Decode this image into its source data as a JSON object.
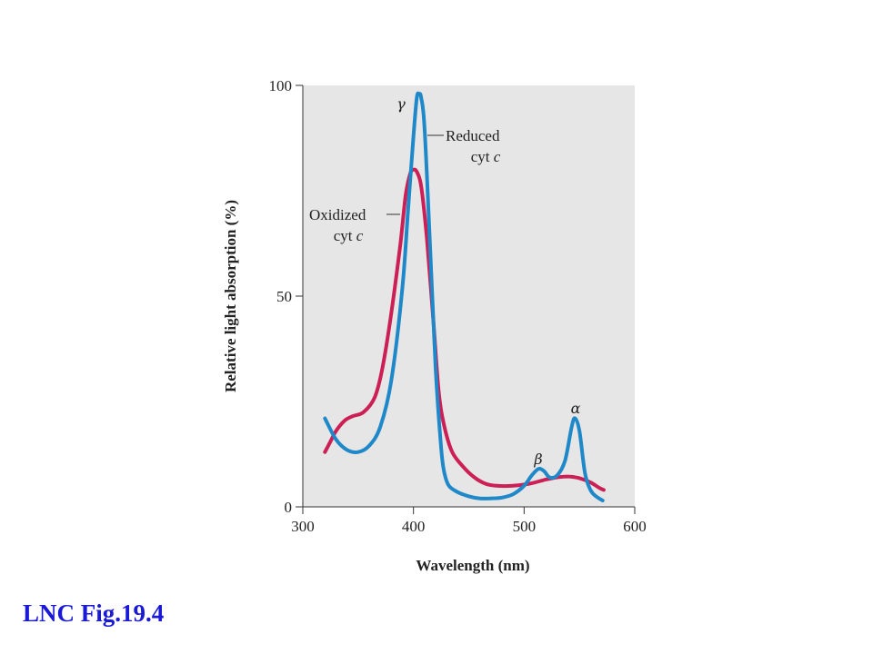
{
  "caption": "LNC Fig.19.4",
  "chart_data": {
    "type": "line",
    "title": "",
    "xlabel": "Wavelength (nm)",
    "ylabel": "Relative light absorption (%)",
    "xlim": [
      300,
      600
    ],
    "ylim": [
      0,
      100
    ],
    "x_ticks": [
      300,
      400,
      500,
      600
    ],
    "y_ticks": [
      0,
      50,
      100
    ],
    "grid": false,
    "background_color": "#e6e6e6",
    "series": [
      {
        "name": "Reduced cyt c",
        "color": "#1e88c9",
        "points": [
          [
            320,
            21
          ],
          [
            330,
            16
          ],
          [
            340,
            13.5
          ],
          [
            350,
            13
          ],
          [
            360,
            14.5
          ],
          [
            370,
            19
          ],
          [
            380,
            30
          ],
          [
            390,
            52
          ],
          [
            395,
            70
          ],
          [
            400,
            88
          ],
          [
            403,
            97
          ],
          [
            405,
            98
          ],
          [
            407,
            97
          ],
          [
            410,
            90
          ],
          [
            415,
            62
          ],
          [
            420,
            33
          ],
          [
            425,
            14
          ],
          [
            428,
            8
          ],
          [
            432,
            5
          ],
          [
            440,
            3.5
          ],
          [
            450,
            2.5
          ],
          [
            460,
            2
          ],
          [
            470,
            2
          ],
          [
            480,
            2.2
          ],
          [
            490,
            3
          ],
          [
            500,
            5
          ],
          [
            507,
            7.5
          ],
          [
            513,
            9
          ],
          [
            518,
            8.5
          ],
          [
            523,
            7
          ],
          [
            530,
            7.5
          ],
          [
            537,
            11
          ],
          [
            543,
            19
          ],
          [
            546,
            21
          ],
          [
            550,
            18
          ],
          [
            555,
            8
          ],
          [
            560,
            4
          ],
          [
            565,
            2.5
          ],
          [
            571,
            1.5
          ]
        ]
      },
      {
        "name": "Oxidized cyt c",
        "color": "#cc1f55",
        "points": [
          [
            320,
            13
          ],
          [
            325,
            15.5
          ],
          [
            330,
            18
          ],
          [
            338,
            20.5
          ],
          [
            345,
            21.5
          ],
          [
            355,
            22.5
          ],
          [
            365,
            26
          ],
          [
            372,
            33
          ],
          [
            380,
            46
          ],
          [
            388,
            62
          ],
          [
            393,
            74
          ],
          [
            397,
            79
          ],
          [
            400,
            80
          ],
          [
            403,
            79.5
          ],
          [
            407,
            76
          ],
          [
            412,
            64
          ],
          [
            418,
            44
          ],
          [
            423,
            27
          ],
          [
            428,
            19
          ],
          [
            435,
            13
          ],
          [
            445,
            9.5
          ],
          [
            455,
            7
          ],
          [
            465,
            5.5
          ],
          [
            475,
            5
          ],
          [
            490,
            5
          ],
          [
            505,
            5.5
          ],
          [
            520,
            6.5
          ],
          [
            530,
            7
          ],
          [
            540,
            7.2
          ],
          [
            550,
            6.8
          ],
          [
            560,
            5.8
          ],
          [
            568,
            4.5
          ],
          [
            572,
            4
          ]
        ]
      }
    ],
    "annotations": {
      "gamma": "γ",
      "beta": "β",
      "alpha": "α",
      "reduced_line1": "Reduced",
      "reduced_line2": "cyt ",
      "reduced_italic": "c",
      "oxidized_line1": "Oxidized",
      "oxidized_line2": "cyt ",
      "oxidized_italic": "c"
    }
  }
}
